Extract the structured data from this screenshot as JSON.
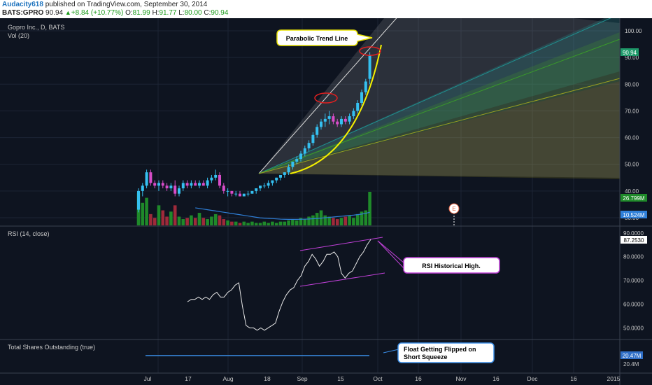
{
  "header": {
    "author": "Audacity618",
    "published": "published on TradingView.com, September 30, 2014",
    "symbol": "BATS:GPRO",
    "last": "90.94",
    "change": "+8.84 (+10.77%)",
    "o_label": "O:",
    "o_val": "81.99",
    "h_label": "H:",
    "h_val": "91.77",
    "l_label": "L:",
    "l_val": "80.00",
    "c_label": "C:",
    "c_val": "90.94"
  },
  "panes": {
    "main": {
      "title": "Gopro Inc., D, BATS",
      "vol_title": "Vol (20)",
      "price_ticks": [
        "100.00",
        "90.00",
        "80.00",
        "70.00",
        "60.00",
        "50.00",
        "40.00",
        "30.00"
      ],
      "last_price_label": "90.94",
      "vol_label_1": "26.799M",
      "vol_label_2": "10.524M",
      "earnings_marker": "E",
      "annotation": "Parabolic Trend Line"
    },
    "rsi": {
      "title": "RSI (14, close)",
      "ticks": [
        "90.0000",
        "80.0000",
        "70.0000",
        "60.0000",
        "50.0000"
      ],
      "last_label": "87.2530",
      "annotation": "RSI Historical High."
    },
    "shares": {
      "title": "Total Shares Outstanding (true)",
      "last_label": "20.47M",
      "tick": "20.4M",
      "annotation_line1": "Float Getting Flipped on",
      "annotation_line2": "Short Squeeze"
    }
  },
  "time_axis": [
    "Jul",
    "17",
    "Aug",
    "18",
    "Sep",
    "15",
    "Oct",
    "16",
    "Nov",
    "16",
    "Dec",
    "16",
    "2015"
  ],
  "colors": {
    "background": "#0e1420",
    "up_candle": "#35c0f0",
    "down_candle": "#d84cc8",
    "vol_up": "#1f8a2a",
    "vol_down": "#9e2a3a",
    "vol_ma": "#2f7fd8",
    "parabola": "#f4f000",
    "rsi_line": "#e8e8e8",
    "channel": "#c040d8",
    "shares_line": "#3a8ee8"
  },
  "chart_data": [
    {
      "type": "candlestick",
      "title": "Gopro Inc., D, BATS",
      "ylim": [
        28,
        104
      ],
      "y_ticks": [
        30,
        40,
        50,
        60,
        70,
        80,
        90,
        100
      ],
      "x_labels": [
        "Jul",
        "17",
        "Aug",
        "18",
        "Sep",
        "15",
        "Oct",
        "16",
        "Nov",
        "16",
        "Dec",
        "16",
        "2015"
      ],
      "ohlc": [
        [
          33,
          41,
          32,
          40
        ],
        [
          40,
          43,
          38,
          42
        ],
        [
          42,
          48,
          41,
          47
        ],
        [
          47,
          48,
          42,
          43
        ],
        [
          43,
          44,
          41,
          42
        ],
        [
          42,
          44,
          40,
          43
        ],
        [
          43,
          44,
          41,
          42
        ],
        [
          42,
          43,
          40,
          41
        ],
        [
          41,
          43,
          40,
          42
        ],
        [
          42,
          44,
          38,
          39
        ],
        [
          39,
          42,
          38,
          41
        ],
        [
          41,
          44,
          40,
          43
        ],
        [
          43,
          44,
          41,
          42
        ],
        [
          42,
          44,
          41,
          43
        ],
        [
          43,
          44,
          42,
          42
        ],
        [
          42,
          44,
          41,
          43
        ],
        [
          43,
          44,
          42,
          42
        ],
        [
          42,
          45,
          41,
          44
        ],
        [
          44,
          46,
          43,
          45
        ],
        [
          45,
          48,
          44,
          46
        ],
        [
          46,
          47,
          41,
          42
        ],
        [
          42,
          43,
          39,
          40
        ],
        [
          40,
          41,
          38,
          40
        ],
        [
          40,
          40,
          38,
          39
        ],
        [
          39,
          40,
          38,
          39
        ],
        [
          39,
          40,
          38,
          38
        ],
        [
          38,
          39,
          38,
          39
        ],
        [
          39,
          40,
          38,
          39
        ],
        [
          39,
          40,
          39,
          40
        ],
        [
          40,
          41,
          39,
          41
        ],
        [
          41,
          42,
          40,
          42
        ],
        [
          42,
          43,
          41,
          42
        ],
        [
          42,
          44,
          41,
          43
        ],
        [
          43,
          44,
          42,
          44
        ],
        [
          44,
          45,
          43,
          45
        ],
        [
          45,
          46,
          44,
          46
        ],
        [
          46,
          47,
          45,
          47
        ],
        [
          47,
          50,
          46,
          49
        ],
        [
          49,
          51,
          48,
          51
        ],
        [
          51,
          53,
          50,
          52
        ],
        [
          52,
          55,
          51,
          54
        ],
        [
          54,
          57,
          53,
          56
        ],
        [
          56,
          59,
          55,
          58
        ],
        [
          58,
          62,
          57,
          61
        ],
        [
          61,
          65,
          60,
          64
        ],
        [
          64,
          67,
          63,
          66
        ],
        [
          66,
          69,
          64,
          67
        ],
        [
          67,
          70,
          65,
          68
        ],
        [
          68,
          69,
          65,
          66
        ],
        [
          66,
          67,
          64,
          65
        ],
        [
          65,
          68,
          64,
          67
        ],
        [
          67,
          68,
          65,
          66
        ],
        [
          66,
          69,
          65,
          68
        ],
        [
          68,
          71,
          67,
          70
        ],
        [
          70,
          74,
          69,
          73
        ],
        [
          73,
          78,
          72,
          77
        ],
        [
          77,
          82,
          76,
          81
        ],
        [
          82,
          92,
          80,
          91
        ]
      ],
      "volume_millions": [
        26,
        18,
        22,
        9,
        6,
        16,
        12,
        7,
        11,
        16,
        7,
        5,
        6,
        8,
        6,
        10,
        6,
        5,
        7,
        9,
        8,
        5,
        4,
        3,
        3,
        2,
        3,
        2,
        3,
        2,
        2,
        3,
        2,
        3,
        2,
        3,
        3,
        4,
        5,
        4,
        6,
        5,
        7,
        8,
        10,
        12,
        8,
        7,
        6,
        5,
        6,
        7,
        8,
        6,
        9,
        11,
        12,
        26.799
      ],
      "volume_ma_millions": [
        null,
        null,
        null,
        null,
        null,
        null,
        null,
        null,
        null,
        null,
        null,
        null,
        null,
        null,
        14,
        13.5,
        13,
        12.5,
        12,
        11.5,
        11,
        10.5,
        10,
        9.5,
        9,
        8.5,
        8,
        7.5,
        7,
        6.5,
        6,
        5.8,
        5.6,
        5.4,
        5.2,
        5.0,
        4.9,
        4.8,
        4.8,
        4.8,
        4.9,
        5.0,
        5.1,
        5.3,
        5.5,
        5.8,
        6.1,
        6.4,
        6.7,
        7.0,
        7.3,
        7.6,
        7.9,
        8.2,
        8.6,
        9.0,
        9.6,
        10.524
      ]
    },
    {
      "type": "line",
      "title": "RSI (14, close)",
      "ylim": [
        46,
        92
      ],
      "y_ticks": [
        50,
        60,
        70,
        80,
        90
      ],
      "series": [
        {
          "name": "RSI (14, close)",
          "values": [
            61,
            62,
            62,
            63,
            62,
            63,
            62,
            64,
            65,
            63,
            63,
            65,
            66,
            68,
            69,
            59,
            51,
            50,
            50,
            49,
            50,
            49,
            50,
            51,
            52,
            57,
            61,
            64,
            66,
            67,
            70,
            72,
            76,
            78,
            81,
            79,
            76,
            78,
            81,
            81,
            82,
            80,
            73,
            71,
            73,
            74,
            77,
            80,
            82,
            85,
            87.253
          ]
        }
      ]
    },
    {
      "type": "line",
      "title": "Total Shares Outstanding (true)",
      "series": [
        {
          "name": "Total Shares Outstanding (true)",
          "values": [
            20.47,
            20.47
          ]
        }
      ]
    }
  ]
}
